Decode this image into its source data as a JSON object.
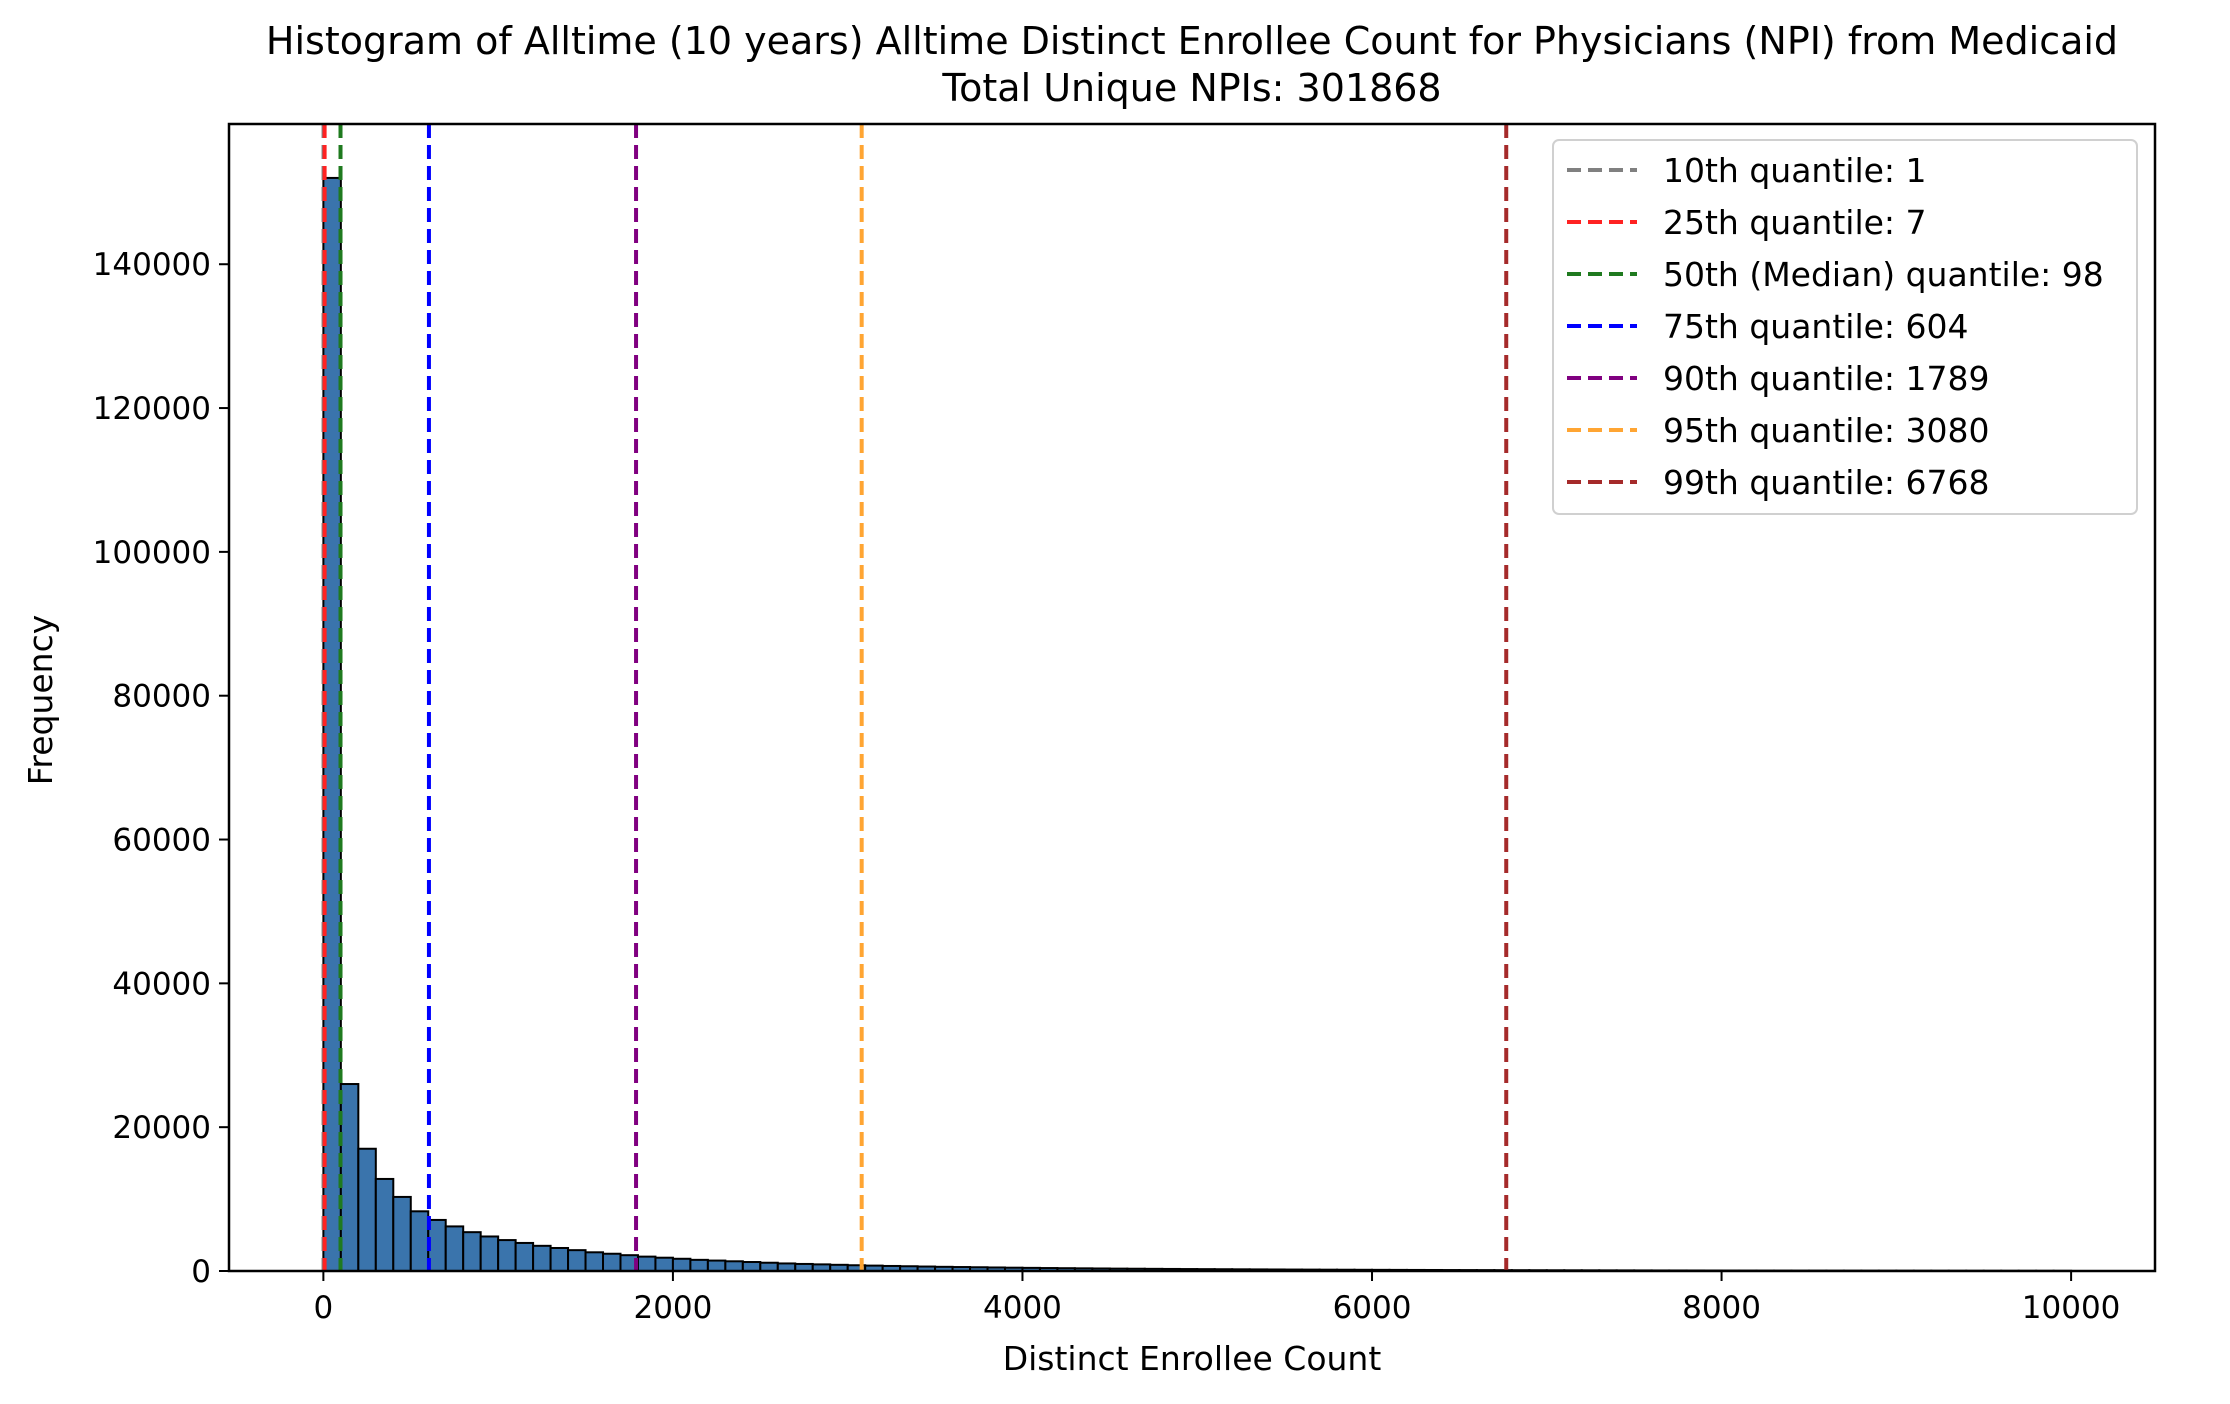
{
  "chart_data": {
    "type": "bar",
    "title": "Histogram of Alltime (10 years) Alltime Distinct Enrollee Count for Physicians (NPI) from Medicaid",
    "subtitle": "Total Unique NPIs: 301868",
    "xlabel": "Distinct Enrollee Count",
    "ylabel": "Frequency",
    "xlim": [
      -540,
      10480
    ],
    "ylim": [
      0,
      159500
    ],
    "xticks": [
      0,
      2000,
      4000,
      6000,
      8000,
      10000
    ],
    "xtick_labels": [
      "0",
      "2000",
      "4000",
      "6000",
      "8000",
      "10000"
    ],
    "yticks": [
      0,
      20000,
      40000,
      60000,
      80000,
      100000,
      120000,
      140000
    ],
    "ytick_labels": [
      "0",
      "20000",
      "40000",
      "60000",
      "80000",
      "100000",
      "120000",
      "140000"
    ],
    "bin_start": 0,
    "bin_width": 100,
    "bar_color": "#3a74ac",
    "bar_edge_color": "#000000",
    "values": [
      152000,
      26000,
      17000,
      12800,
      10300,
      8300,
      7100,
      6200,
      5400,
      4800,
      4300,
      3900,
      3500,
      3200,
      2900,
      2600,
      2400,
      2200,
      2000,
      1850,
      1700,
      1550,
      1450,
      1350,
      1250,
      1150,
      1050,
      980,
      920,
      860,
      800,
      750,
      700,
      660,
      620,
      580,
      550,
      520,
      490,
      460,
      435,
      410,
      390,
      370,
      350,
      330,
      315,
      300,
      285,
      270,
      257,
      245,
      233,
      222,
      212,
      202,
      193,
      184,
      176,
      168,
      160,
      153,
      146,
      140,
      134,
      128,
      122,
      117,
      112,
      107,
      102,
      98,
      94,
      90,
      86,
      82,
      78,
      75,
      72,
      69,
      66,
      63,
      60,
      58,
      56,
      54,
      52,
      50,
      48,
      46,
      44,
      42,
      40,
      38,
      36,
      34,
      32,
      30,
      28,
      26
    ],
    "quantiles": [
      {
        "label": "10th quantile: 1",
        "value": 1,
        "color": "#808080"
      },
      {
        "label": "25th quantile: 7",
        "value": 7,
        "color": "#ff2222"
      },
      {
        "label": "50th (Median) quantile: 98",
        "value": 98,
        "color": "#1f7a1f"
      },
      {
        "label": "75th quantile: 604",
        "value": 604,
        "color": "#0000ff"
      },
      {
        "label": "90th quantile: 1789",
        "value": 1789,
        "color": "#800080"
      },
      {
        "label": "95th quantile: 3080",
        "value": 3080,
        "color": "#ffa533"
      },
      {
        "label": "99th quantile: 6768",
        "value": 6768,
        "color": "#a52a2a"
      }
    ],
    "legend_position": "top-right",
    "grid": false
  }
}
